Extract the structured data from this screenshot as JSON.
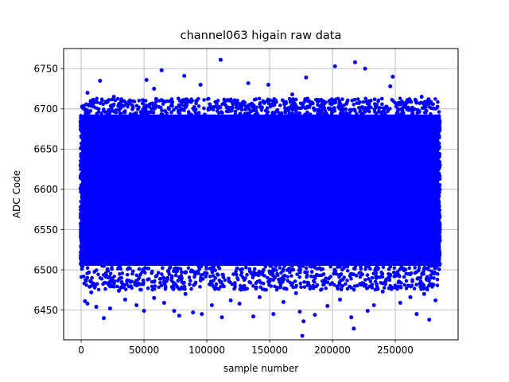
{
  "chart_data": {
    "type": "scatter",
    "title": "channel063 higain raw data",
    "xlabel": "sample number",
    "ylabel": "ADC Code",
    "xlim": [
      -14000,
      300000
    ],
    "ylim": [
      6413,
      6775
    ],
    "x_ticks": [
      0,
      50000,
      100000,
      150000,
      200000,
      250000
    ],
    "x_tick_labels": [
      "0",
      "50000",
      "100000",
      "150000",
      "200000",
      "250000"
    ],
    "y_ticks": [
      6450,
      6500,
      6550,
      6600,
      6650,
      6700,
      6750
    ],
    "y_tick_labels": [
      "6450",
      "6500",
      "6550",
      "6600",
      "6650",
      "6700",
      "6750"
    ],
    "grid": true,
    "marker_color": "#0000ff",
    "n_samples": 285000,
    "dense_band": {
      "x_range": [
        0,
        285000
      ],
      "y_range": [
        6505,
        6693
      ]
    },
    "series": [
      {
        "outliers": [
          [
            111000,
            6761
          ],
          [
            202000,
            6753
          ],
          [
            218000,
            6758
          ],
          [
            226000,
            6750
          ],
          [
            64000,
            6748
          ],
          [
            248000,
            6740
          ],
          [
            179000,
            6739
          ],
          [
            82000,
            6741
          ],
          [
            52000,
            6736
          ],
          [
            15000,
            6735
          ],
          [
            133000,
            6732
          ],
          [
            149000,
            6730
          ],
          [
            246000,
            6728
          ],
          [
            95000,
            6730
          ],
          [
            58000,
            6725
          ],
          [
            5000,
            6720
          ],
          [
            26000,
            6715
          ],
          [
            271000,
            6715
          ],
          [
            32000,
            6712
          ],
          [
            168000,
            6718
          ],
          [
            18000,
            6440
          ],
          [
            112000,
            6441
          ],
          [
            137000,
            6442
          ],
          [
            215000,
            6441
          ],
          [
            177000,
            6436
          ],
          [
            176000,
            6418
          ],
          [
            217000,
            6427
          ],
          [
            277000,
            6438
          ],
          [
            50000,
            6449
          ],
          [
            74000,
            6449
          ],
          [
            78000,
            6443
          ],
          [
            89000,
            6447
          ],
          [
            96000,
            6445
          ],
          [
            153000,
            6445
          ],
          [
            174000,
            6448
          ],
          [
            186000,
            6444
          ],
          [
            228000,
            6449
          ],
          [
            267000,
            6445
          ],
          [
            3000,
            6461
          ],
          [
            5000,
            6458
          ],
          [
            12000,
            6454
          ],
          [
            23000,
            6452
          ],
          [
            35000,
            6463
          ],
          [
            44000,
            6456
          ],
          [
            58000,
            6465
          ],
          [
            66000,
            6459
          ],
          [
            104000,
            6456
          ],
          [
            119000,
            6462
          ],
          [
            126000,
            6458
          ],
          [
            142000,
            6466
          ],
          [
            161000,
            6460
          ],
          [
            196000,
            6455
          ],
          [
            206000,
            6463
          ],
          [
            233000,
            6456
          ],
          [
            254000,
            6459
          ],
          [
            262000,
            6466
          ],
          [
            282000,
            6462
          ],
          [
            8000,
            6472
          ],
          [
            30000,
            6474
          ],
          [
            83000,
            6470
          ],
          [
            171000,
            6471
          ],
          [
            240000,
            6473
          ],
          [
            273000,
            6470
          ]
        ]
      }
    ]
  }
}
